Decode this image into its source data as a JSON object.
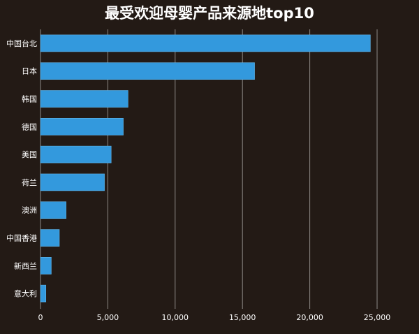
{
  "colors": {
    "background": "#231a15",
    "bar": "#3399dd",
    "grid": "#8e8a86",
    "text": "#ffffff"
  },
  "chart_data": {
    "type": "bar",
    "orientation": "horizontal",
    "title": "最受欢迎母婴产品来源地top10",
    "xlabel": "",
    "ylabel": "",
    "categories": [
      "中国台北",
      "日本",
      "韩国",
      "德国",
      "美国",
      "荷兰",
      "澳洲",
      "中国香港",
      "新西兰",
      "意大利"
    ],
    "values": [
      24500,
      15900,
      6500,
      6150,
      5250,
      4750,
      1900,
      1400,
      800,
      400
    ],
    "xlim": [
      0,
      25000
    ],
    "xticks": [
      0,
      5000,
      10000,
      15000,
      20000,
      25000
    ],
    "xtick_labels": [
      "0",
      "5,000",
      "10,000",
      "15,000",
      "20,000",
      "25,000"
    ],
    "grid": true,
    "legend": "none"
  }
}
